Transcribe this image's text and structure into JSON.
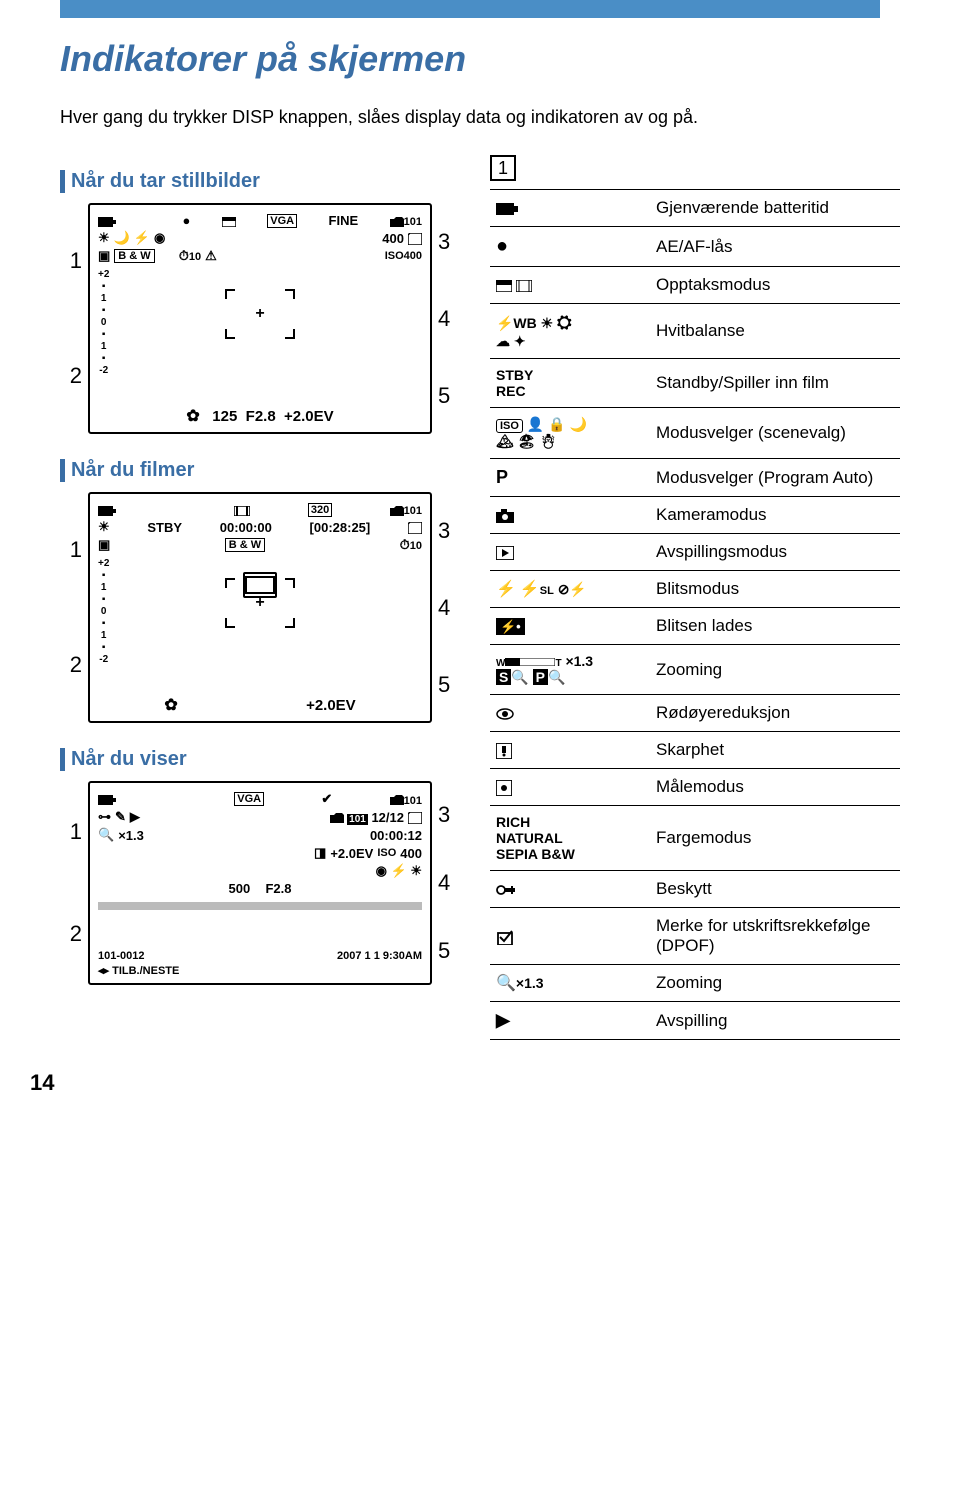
{
  "page": {
    "title": "Indikatorer på skjermen",
    "intro": "Hver gang du trykker DISP knappen, slåes display data og indikatoren av og på.",
    "page_number": "14"
  },
  "sections": {
    "still": "Når du tar stillbilder",
    "movie": "Når du filmer",
    "playback": "Når du viser"
  },
  "lcd_still": {
    "top_iso": "400",
    "vga_label": "VGA",
    "fine_label": "FINE",
    "frames": "400",
    "timer": "10",
    "iso_set": "400",
    "bw_label": "B & W",
    "ev_plus": "+2",
    "ev_one_a": "1",
    "ev_zero": "0",
    "ev_one_b": "1",
    "ev_minus": "-2",
    "shutter": "125",
    "aperture": "F2.8",
    "ev": "+2.0EV",
    "left_nums": [
      "1",
      "2"
    ],
    "right_nums": [
      "3",
      "4",
      "5"
    ]
  },
  "lcd_movie": {
    "size_label": "320",
    "stby": "STBY",
    "time": "00:00:00",
    "remain": "[00:28:25]",
    "timer": "10",
    "bw_label": "B & W",
    "ev_plus": "+2",
    "ev_one_a": "1",
    "ev_zero": "0",
    "ev_one_b": "1",
    "ev_minus": "-2",
    "ev": "+2.0EV",
    "left_nums": [
      "1",
      "2"
    ],
    "right_nums": [
      "3",
      "4",
      "5"
    ]
  },
  "lcd_play": {
    "vga_label": "VGA",
    "counter": "12/12",
    "time": "00:00:12",
    "ev": "+2.0EV",
    "iso": "400",
    "shutter": "500",
    "aperture": "F2.8",
    "zoom": "×1.3",
    "file": "101-0012",
    "date": "2007  1  1 9:30AM",
    "tilb": "TILB./NESTE",
    "left_nums": [
      "1",
      "2"
    ],
    "right_nums": [
      "3",
      "4",
      "5"
    ]
  },
  "region": {
    "label": "1"
  },
  "table": [
    {
      "icon_type": "battery",
      "desc": "Gjenværende batteritid"
    },
    {
      "icon_type": "aeaf",
      "desc": "AE/AF-lås"
    },
    {
      "icon_type": "capture-mode",
      "desc": "Opptaksmodus"
    },
    {
      "icon_type": "wb",
      "text": "WB",
      "desc": "Hvitbalanse"
    },
    {
      "icon_type": "stby",
      "text": "STBY\nREC",
      "desc": "Standby/Spiller inn film"
    },
    {
      "icon_type": "iso-scene",
      "text": "ISO",
      "desc": "Modusvelger (scenevalg)"
    },
    {
      "icon_type": "p",
      "text": "P",
      "desc": "Modusvelger (Program Auto)"
    },
    {
      "icon_type": "camera",
      "desc": "Kameramodus"
    },
    {
      "icon_type": "play",
      "desc": "Avspillingsmodus"
    },
    {
      "icon_type": "flash",
      "text": "SL",
      "desc": "Blitsmodus"
    },
    {
      "icon_type": "flash-charge",
      "desc": "Blitsen lades"
    },
    {
      "icon_type": "zoom-bar",
      "text": "×1.3",
      "desc": "Zooming"
    },
    {
      "icon_type": "redeye",
      "desc": "Rødøyereduksjon"
    },
    {
      "icon_type": "sharpness",
      "desc": "Skarphet"
    },
    {
      "icon_type": "metering",
      "desc": "Målemodus"
    },
    {
      "icon_type": "color-mode",
      "text": "RICH\nNATURAL\nSEPIA B&W",
      "desc": "Fargemodus"
    },
    {
      "icon_type": "protect",
      "desc": "Beskytt"
    },
    {
      "icon_type": "dpof",
      "desc": "Merke for utskriftsrekkefølge (DPOF)"
    },
    {
      "icon_type": "zoom-mag",
      "text": "×1.3",
      "desc": "Zooming"
    },
    {
      "icon_type": "play-tri",
      "desc": "Avspilling"
    }
  ]
}
